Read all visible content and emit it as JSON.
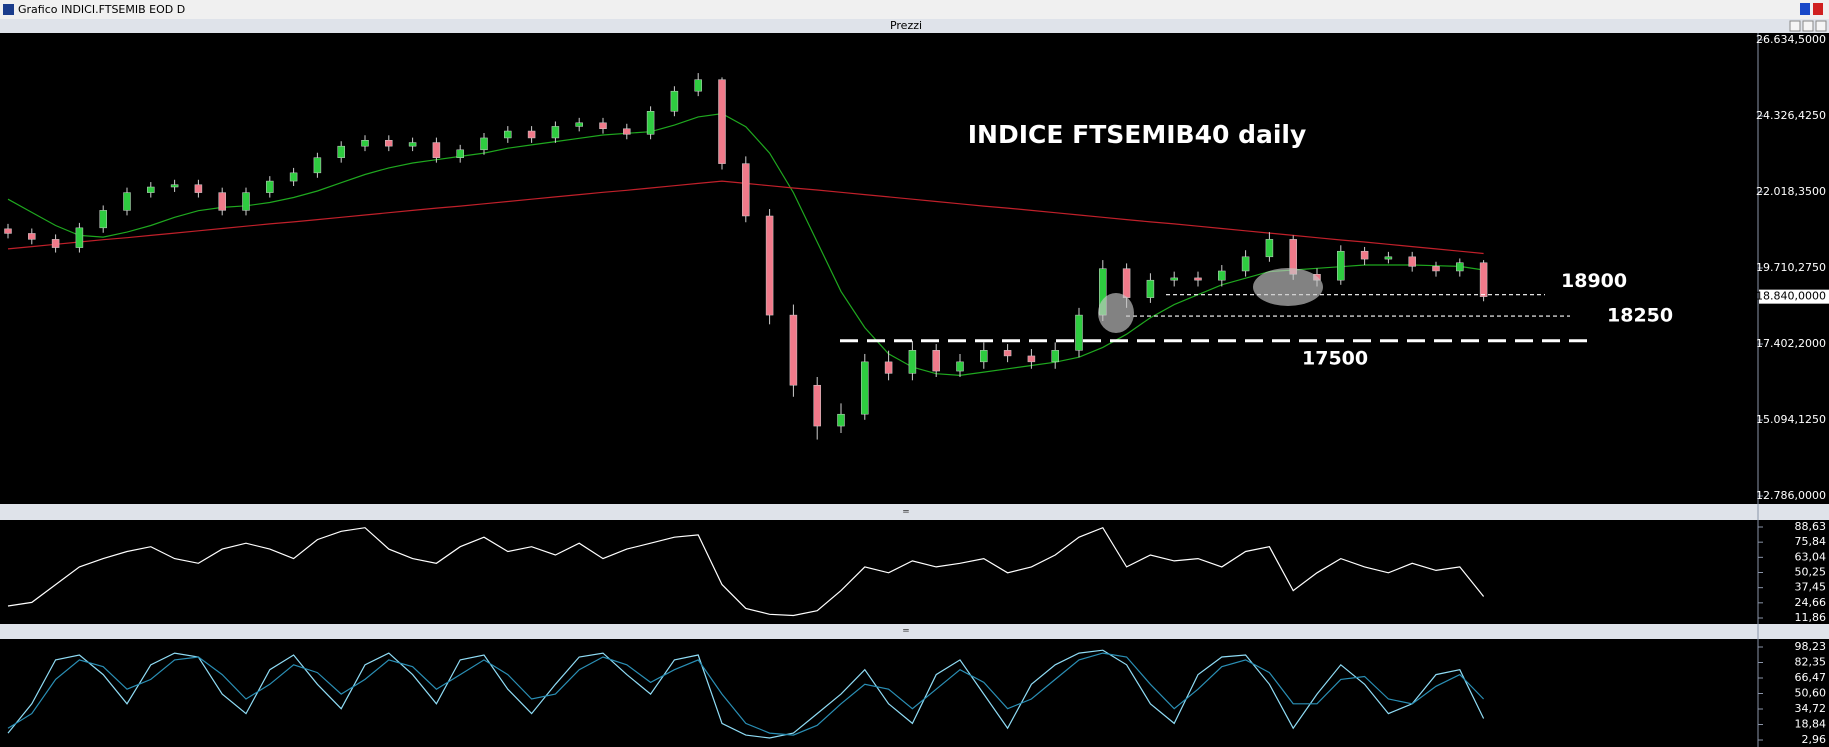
{
  "window": {
    "title": "Grafico INDICI.FTSEMIB EOD D",
    "panel_title": "Prezzi"
  },
  "chart_data": [
    {
      "type": "candlestick",
      "title": "INDICE FTSEMIB40 daily",
      "open": [
        20900,
        20760,
        20580,
        20330,
        20930,
        21460,
        22000,
        22170,
        22240,
        22000,
        21460,
        22000,
        22350,
        22600,
        23060,
        23410,
        23590,
        23410,
        23520,
        23060,
        23300,
        23660,
        23870,
        23660,
        24010,
        24120,
        23940,
        23770,
        24470,
        25080,
        25430,
        22880,
        21290,
        18280,
        16150,
        14910,
        15270,
        16860,
        16510,
        17210,
        16580,
        16860,
        17210,
        17040,
        16860,
        17210,
        18280,
        19690,
        18810,
        19340,
        19410,
        19340,
        19620,
        20050,
        20580,
        19520,
        19340,
        20220,
        19980,
        20050,
        19760,
        19620,
        19870
      ],
      "high": [
        21050,
        20910,
        20730,
        21080,
        21610,
        22150,
        22320,
        22390,
        22390,
        22150,
        22150,
        22500,
        22750,
        23210,
        23560,
        23740,
        23740,
        23670,
        23670,
        23450,
        23810,
        24020,
        24020,
        24160,
        24270,
        24270,
        24090,
        24620,
        25230,
        25630,
        25500,
        23100,
        21500,
        18600,
        16400,
        15600,
        17100,
        17200,
        17500,
        17400,
        17100,
        17450,
        17400,
        17250,
        17450,
        18500,
        19950,
        19850,
        19550,
        19600,
        19600,
        19800,
        20250,
        20800,
        20700,
        19700,
        20400,
        20350,
        20200,
        20200,
        19900,
        20000,
        19950
      ],
      "low": [
        20610,
        20430,
        20180,
        20180,
        20780,
        21310,
        21850,
        22020,
        21850,
        21310,
        21310,
        21850,
        22200,
        22450,
        22910,
        23260,
        23260,
        23260,
        22910,
        22910,
        23150,
        23510,
        23510,
        23510,
        23860,
        23790,
        23620,
        23620,
        24320,
        24930,
        22700,
        21100,
        18000,
        15800,
        14500,
        14700,
        15100,
        16300,
        16300,
        16400,
        16400,
        16650,
        16850,
        16650,
        16650,
        17000,
        18100,
        18500,
        18650,
        19150,
        19150,
        19150,
        19450,
        19900,
        19350,
        19150,
        19200,
        19800,
        19850,
        19600,
        19450,
        19450,
        18700
      ],
      "close": [
        20760,
        20580,
        20330,
        20930,
        21460,
        22000,
        22170,
        22240,
        22000,
        21460,
        22000,
        22350,
        22600,
        23060,
        23410,
        23590,
        23410,
        23520,
        23060,
        23300,
        23660,
        23870,
        23660,
        24010,
        24120,
        23940,
        23770,
        24470,
        25080,
        25430,
        22880,
        21290,
        18280,
        16150,
        14910,
        15270,
        16860,
        16510,
        17210,
        16580,
        16860,
        17210,
        17040,
        16860,
        17210,
        18280,
        19690,
        18810,
        19340,
        19410,
        19340,
        19620,
        20050,
        20580,
        19520,
        19340,
        20220,
        19980,
        20050,
        19760,
        19620,
        19870,
        18840
      ],
      "up_color": "#2ecc40",
      "down_color": "#f07a8a",
      "series": [
        {
          "color": "#1fa81f",
          "values": [
            21800,
            21400,
            21000,
            20700,
            20650,
            20800,
            21000,
            21250,
            21450,
            21550,
            21600,
            21700,
            21850,
            22050,
            22300,
            22550,
            22750,
            22900,
            23000,
            23100,
            23200,
            23350,
            23450,
            23550,
            23650,
            23750,
            23800,
            23850,
            24050,
            24300,
            24400,
            24000,
            23200,
            22000,
            20500,
            19000,
            17900,
            17100,
            16700,
            16500,
            16450,
            16550,
            16650,
            16750,
            16850,
            17000,
            17300,
            17700,
            18200,
            18600,
            18900,
            19200,
            19400,
            19600,
            19650,
            19700,
            19750,
            19800,
            19800,
            19800,
            19780,
            19760,
            19650
          ]
        },
        {
          "color": "#c0202a",
          "values": [
            20290,
            20360,
            20430,
            20500,
            20570,
            20630,
            20700,
            20770,
            20840,
            20910,
            20980,
            21050,
            21110,
            21180,
            21250,
            21320,
            21390,
            21460,
            21530,
            21590,
            21660,
            21730,
            21800,
            21870,
            21940,
            22010,
            22070,
            22140,
            22210,
            22280,
            22350,
            22280,
            22210,
            22140,
            22080,
            22010,
            21940,
            21870,
            21800,
            21730,
            21660,
            21590,
            21530,
            21460,
            21390,
            21320,
            21250,
            21180,
            21110,
            21050,
            20980,
            20910,
            20840,
            20770,
            20700,
            20630,
            20560,
            20500,
            20430,
            20360,
            20290,
            20220,
            20150
          ]
        }
      ],
      "levels": [
        18900,
        18250,
        17500
      ],
      "last_price": {
        "value": 18840,
        "label": "18.840,0000"
      },
      "ylim": [
        12786,
        26634.5
      ],
      "yticks": [
        {
          "value": 26634.5,
          "label": "26.634,5000"
        },
        {
          "value": 24326.425,
          "label": "24.326,4250"
        },
        {
          "value": 22018.35,
          "label": "22.018,3500"
        },
        {
          "value": 19710.275,
          "label": "19.710,2750"
        },
        {
          "value": 17402.2,
          "label": "17.402,2000"
        },
        {
          "value": 15094.125,
          "label": "15.094,1250"
        },
        {
          "value": 12786,
          "label": "12.786,0000"
        }
      ]
    },
    {
      "type": "line",
      "series": [
        {
          "color": "#ffffff",
          "values": [
            22,
            25,
            40,
            55,
            62,
            68,
            72,
            62,
            58,
            70,
            75,
            70,
            62,
            78,
            85,
            88,
            70,
            62,
            58,
            72,
            80,
            68,
            72,
            65,
            75,
            62,
            70,
            75,
            80,
            82,
            40,
            20,
            15,
            14,
            18,
            35,
            55,
            50,
            60,
            55,
            58,
            62,
            50,
            55,
            65,
            80,
            88,
            55,
            65,
            60,
            62,
            55,
            68,
            72,
            35,
            50,
            62,
            55,
            50,
            58,
            52,
            55,
            30
          ]
        }
      ],
      "ylim": [
        11.86,
        88.63
      ],
      "yticks": [
        {
          "value": 88.63,
          "label": "88,63"
        },
        {
          "value": 75.84,
          "label": "75,84"
        },
        {
          "value": 63.04,
          "label": "63,04"
        },
        {
          "value": 50.25,
          "label": "50,25"
        },
        {
          "value": 37.45,
          "label": "37,45"
        },
        {
          "value": 24.66,
          "label": "24,66"
        },
        {
          "value": 11.86,
          "label": "11,86"
        }
      ]
    },
    {
      "type": "line",
      "series": [
        {
          "color": "#8fdcf5",
          "values": [
            10,
            40,
            85,
            90,
            70,
            40,
            80,
            92,
            88,
            50,
            30,
            75,
            90,
            60,
            35,
            80,
            92,
            70,
            40,
            85,
            90,
            55,
            30,
            60,
            88,
            92,
            70,
            50,
            85,
            90,
            20,
            8,
            5,
            10,
            30,
            50,
            75,
            40,
            20,
            70,
            85,
            50,
            15,
            60,
            80,
            92,
            95,
            80,
            40,
            20,
            70,
            88,
            90,
            60,
            15,
            50,
            80,
            60,
            30,
            40,
            70,
            75,
            25
          ]
        },
        {
          "color": "#2a8fb5",
          "values": [
            15,
            30,
            65,
            85,
            78,
            55,
            65,
            85,
            88,
            70,
            45,
            60,
            80,
            72,
            50,
            65,
            85,
            78,
            55,
            70,
            85,
            70,
            45,
            50,
            75,
            88,
            80,
            62,
            75,
            85,
            50,
            20,
            10,
            8,
            18,
            40,
            60,
            55,
            35,
            55,
            75,
            62,
            35,
            45,
            65,
            85,
            92,
            88,
            60,
            35,
            55,
            78,
            85,
            72,
            40,
            40,
            65,
            68,
            45,
            40,
            58,
            70,
            45
          ]
        }
      ],
      "ylim": [
        2.96,
        98.23
      ],
      "yticks": [
        {
          "value": 98.23,
          "label": "98,23"
        },
        {
          "value": 82.35,
          "label": "82,35"
        },
        {
          "value": 66.47,
          "label": "66,47"
        },
        {
          "value": 50.6,
          "label": "50,60"
        },
        {
          "value": 34.72,
          "label": "34,72"
        },
        {
          "value": 18.84,
          "label": "18,84"
        },
        {
          "value": 2.96,
          "label": "2,96"
        }
      ]
    }
  ]
}
